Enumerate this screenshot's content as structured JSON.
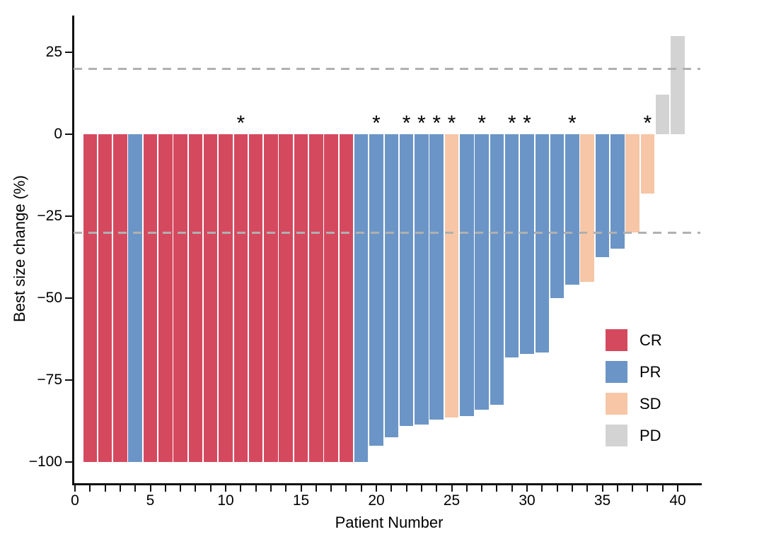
{
  "chart_data": {
    "type": "bar",
    "title": "",
    "xlabel": "Patient Number",
    "ylabel": "Best size change (%)",
    "x_tick_labels": [
      "0",
      "5",
      "10",
      "15",
      "20",
      "25",
      "30",
      "35",
      "40"
    ],
    "x_tick_values": [
      0,
      5,
      10,
      15,
      20,
      25,
      30,
      35,
      40
    ],
    "x_minor_tick_every": 1,
    "xlim": [
      -0.1,
      41.6
    ],
    "y_ticks": [
      25,
      0,
      -25,
      -50,
      -75,
      -100
    ],
    "y_tick_labels": [
      "25",
      "0",
      "−25",
      "−50",
      "−75",
      "−100"
    ],
    "ylim": [
      -106.5,
      36.5
    ],
    "grid": "off",
    "reference_lines": {
      "upper_dashed": 20,
      "lower_dashed": -30,
      "style": "dashed",
      "color": "#b0b0b0"
    },
    "annotation_symbol": "*",
    "annotation_note": "asterisk shown above bar when annotated is true",
    "legend": {
      "position": "inside-right",
      "items": [
        {
          "label": "CR",
          "color": "#d5495f"
        },
        {
          "label": "PR",
          "color": "#6b95c6"
        },
        {
          "label": "SD",
          "color": "#f6c6a6"
        },
        {
          "label": "PD",
          "color": "#d3d3d3"
        }
      ]
    },
    "colors": {
      "CR": "#d5495f",
      "PR": "#6b95c6",
      "SD": "#f6c6a6",
      "PD": "#d3d3d3"
    },
    "patients": [
      {
        "patient": 1,
        "value": -100,
        "response": "CR",
        "annotated": false
      },
      {
        "patient": 2,
        "value": -100,
        "response": "CR",
        "annotated": false
      },
      {
        "patient": 3,
        "value": -100,
        "response": "CR",
        "annotated": false
      },
      {
        "patient": 4,
        "value": -100,
        "response": "PR",
        "annotated": false
      },
      {
        "patient": 5,
        "value": -100,
        "response": "CR",
        "annotated": false
      },
      {
        "patient": 6,
        "value": -100,
        "response": "CR",
        "annotated": false
      },
      {
        "patient": 7,
        "value": -100,
        "response": "CR",
        "annotated": false
      },
      {
        "patient": 8,
        "value": -100,
        "response": "CR",
        "annotated": false
      },
      {
        "patient": 9,
        "value": -100,
        "response": "CR",
        "annotated": false
      },
      {
        "patient": 10,
        "value": -100,
        "response": "CR",
        "annotated": false
      },
      {
        "patient": 11,
        "value": -100,
        "response": "CR",
        "annotated": true
      },
      {
        "patient": 12,
        "value": -100,
        "response": "CR",
        "annotated": false
      },
      {
        "patient": 13,
        "value": -100,
        "response": "CR",
        "annotated": false
      },
      {
        "patient": 14,
        "value": -100,
        "response": "CR",
        "annotated": false
      },
      {
        "patient": 15,
        "value": -100,
        "response": "CR",
        "annotated": false
      },
      {
        "patient": 16,
        "value": -100,
        "response": "CR",
        "annotated": false
      },
      {
        "patient": 17,
        "value": -100,
        "response": "CR",
        "annotated": false
      },
      {
        "patient": 18,
        "value": -100,
        "response": "CR",
        "annotated": false
      },
      {
        "patient": 19,
        "value": -100,
        "response": "PR",
        "annotated": false
      },
      {
        "patient": 20,
        "value": -95,
        "response": "PR",
        "annotated": true
      },
      {
        "patient": 21,
        "value": -92.5,
        "response": "PR",
        "annotated": false
      },
      {
        "patient": 22,
        "value": -89,
        "response": "PR",
        "annotated": true
      },
      {
        "patient": 23,
        "value": -88.5,
        "response": "PR",
        "annotated": true
      },
      {
        "patient": 24,
        "value": -87,
        "response": "PR",
        "annotated": true
      },
      {
        "patient": 25,
        "value": -86.5,
        "response": "SD",
        "annotated": true
      },
      {
        "patient": 26,
        "value": -86,
        "response": "PR",
        "annotated": false
      },
      {
        "patient": 27,
        "value": -84,
        "response": "PR",
        "annotated": true
      },
      {
        "patient": 28,
        "value": -82.5,
        "response": "PR",
        "annotated": false
      },
      {
        "patient": 29,
        "value": -68,
        "response": "PR",
        "annotated": true
      },
      {
        "patient": 30,
        "value": -67,
        "response": "PR",
        "annotated": true
      },
      {
        "patient": 31,
        "value": -66.5,
        "response": "PR",
        "annotated": false
      },
      {
        "patient": 32,
        "value": -50,
        "response": "PR",
        "annotated": false
      },
      {
        "patient": 33,
        "value": -46,
        "response": "PR",
        "annotated": true
      },
      {
        "patient": 34,
        "value": -45,
        "response": "SD",
        "annotated": false
      },
      {
        "patient": 35,
        "value": -37.5,
        "response": "PR",
        "annotated": false
      },
      {
        "patient": 36,
        "value": -35,
        "response": "PR",
        "annotated": false
      },
      {
        "patient": 37,
        "value": -30,
        "response": "SD",
        "annotated": false
      },
      {
        "patient": 38,
        "value": -18,
        "response": "SD",
        "annotated": true
      },
      {
        "patient": 39,
        "value": 12,
        "response": "PD",
        "annotated": false
      },
      {
        "patient": 40,
        "value": 30,
        "response": "PD",
        "annotated": false
      }
    ]
  }
}
